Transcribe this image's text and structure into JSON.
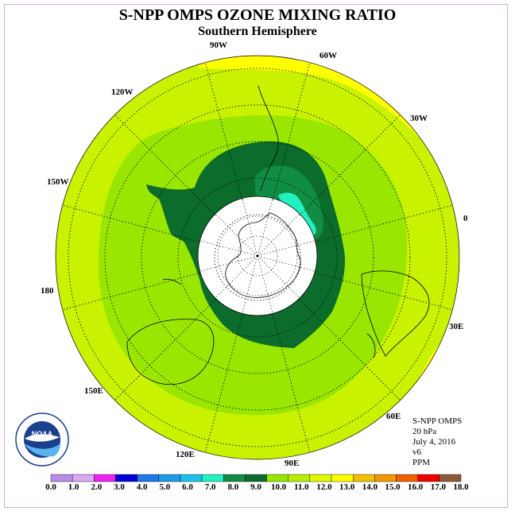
{
  "title": "S-NPP OMPS OZONE MIXING RATIO",
  "subtitle": "Southern Hemisphere",
  "longitude_labels": [
    "90W",
    "60W",
    "30W",
    "0",
    "30E",
    "60E",
    "90E",
    "120E",
    "150E",
    "180",
    "150W",
    "120W"
  ],
  "info": {
    "instrument": "S-NPP OMPS",
    "pressure": "20 hPa",
    "date": "July 4, 2016",
    "version": "v6",
    "units": "PPM"
  },
  "logo": {
    "text": "NOAA",
    "icon": "noaa-logo-icon"
  },
  "colorbar": {
    "ticks": [
      "0.0",
      "1.0",
      "2.0",
      "3.0",
      "4.0",
      "5.0",
      "6.0",
      "7.0",
      "8.0",
      "9.0",
      "10.0",
      "11.0",
      "12.0",
      "13.0",
      "14.0",
      "15.0",
      "16.0",
      "17.0",
      "18.0"
    ],
    "colors": [
      "#b88ce8",
      "#d8a8f0",
      "#ee22ee",
      "#0000dd",
      "#1e78e8",
      "#1e9ae6",
      "#1ec0e8",
      "#22f0c0",
      "#118c44",
      "#0b6c2c",
      "#99e600",
      "#b8ee00",
      "#e0f800",
      "#ffff00",
      "#f0c000",
      "#f09800",
      "#f06000",
      "#ee0000",
      "#8c5a36"
    ]
  },
  "colors": {
    "band_8": "#22f0c0",
    "band_9": "#118c44",
    "band_10": "#0b6c2c",
    "band_11": "#99e600",
    "band_12": "#c8f200",
    "band_13": "#ffff00"
  }
}
